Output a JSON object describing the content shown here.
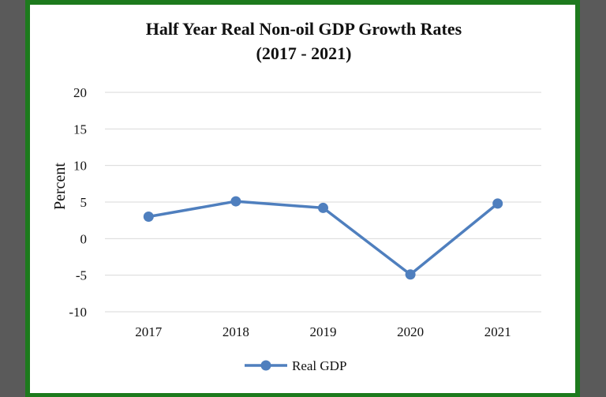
{
  "chart_data": {
    "type": "line",
    "title": "Half Year Real Non-oil GDP Growth Rates",
    "subtitle": "(2017 - 2021)",
    "xlabel": "",
    "ylabel": "Percent",
    "categories": [
      "2017",
      "2018",
      "2019",
      "2020",
      "2021"
    ],
    "series": [
      {
        "name": "Real GDP",
        "values": [
          3.0,
          5.1,
          4.2,
          -4.9,
          4.8
        ]
      }
    ],
    "ylim": [
      -10,
      20
    ],
    "yticks": [
      "20",
      "15",
      "10",
      "5",
      "0",
      "-5",
      "-10"
    ],
    "grid": true,
    "legend": "bottom",
    "colors": {
      "series": "#4f7fbe",
      "grid": "#d9d9d9",
      "frame": "#1d7a1d"
    }
  }
}
